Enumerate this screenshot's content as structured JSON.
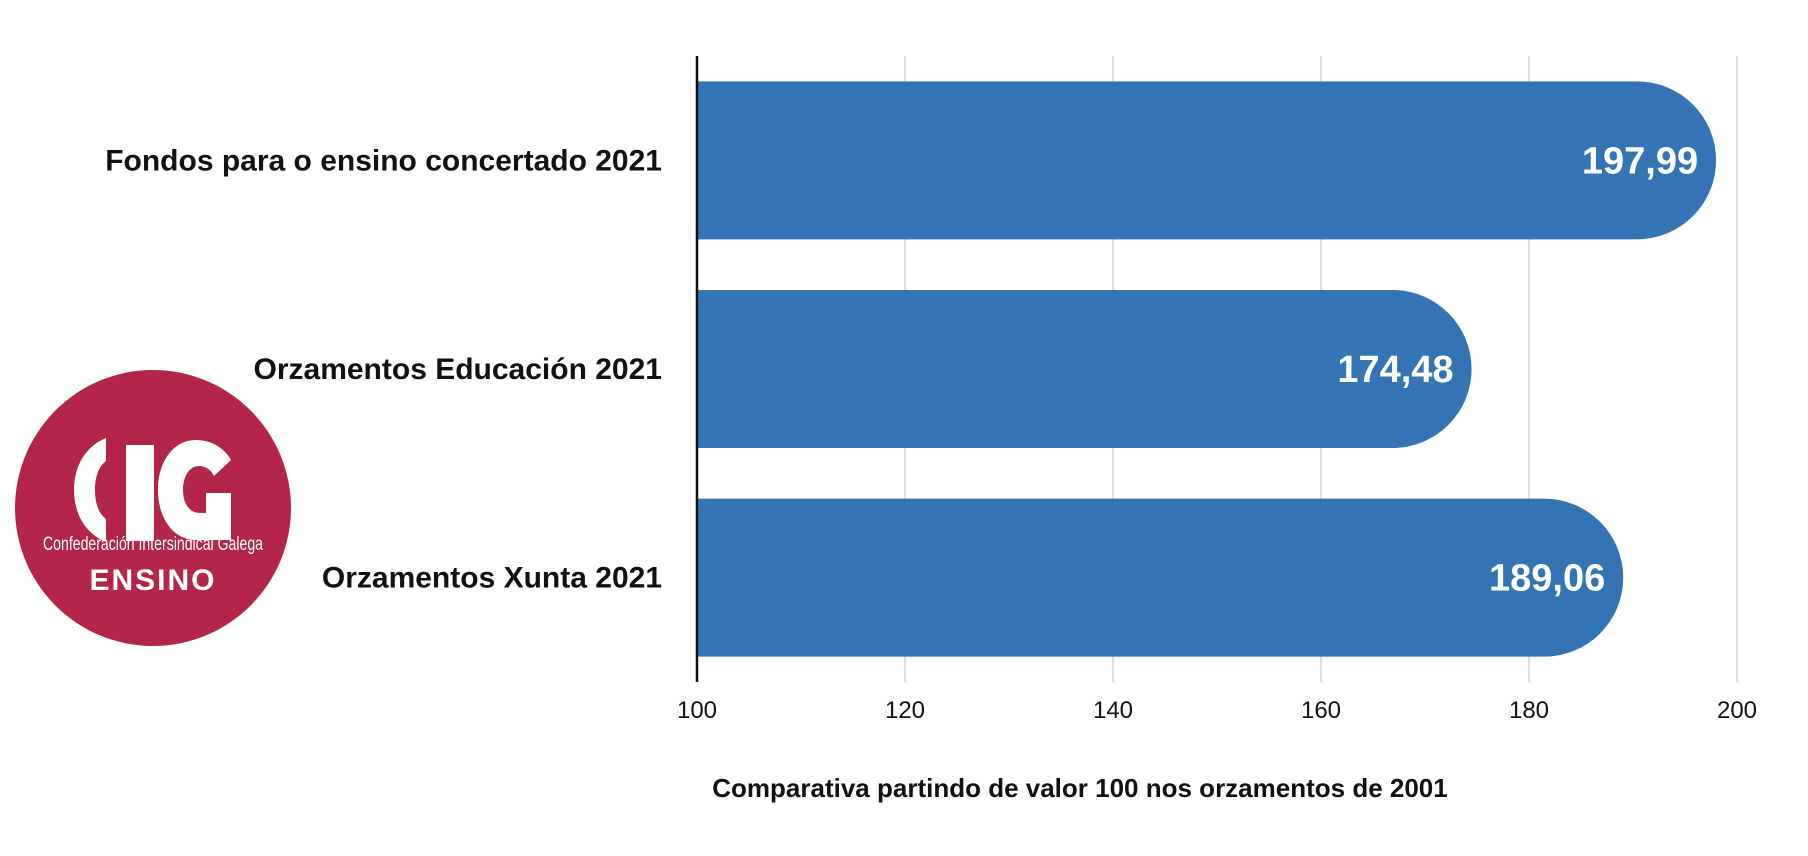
{
  "logo": {
    "mark": "CIG",
    "org": "Confederación Intersindical Galega",
    "unit": "ENSINO",
    "color": "#b3264a"
  },
  "chart_data": {
    "type": "bar",
    "orientation": "horizontal",
    "categories": [
      "Fondos para o ensino concertado 2021",
      "Orzamentos Educación 2021",
      "Orzamentos Xunta 2021"
    ],
    "values": [
      197.99,
      174.48,
      189.06
    ],
    "value_labels": [
      "197,99",
      "174,48",
      "189,06"
    ],
    "xlabel": "Comparativa partindo de valor 100 nos orzamentos de 2001",
    "xlim": [
      100,
      200
    ],
    "xticks": [
      100,
      120,
      140,
      160,
      180,
      200
    ],
    "grid": true,
    "bar_color": "#3474b5"
  }
}
